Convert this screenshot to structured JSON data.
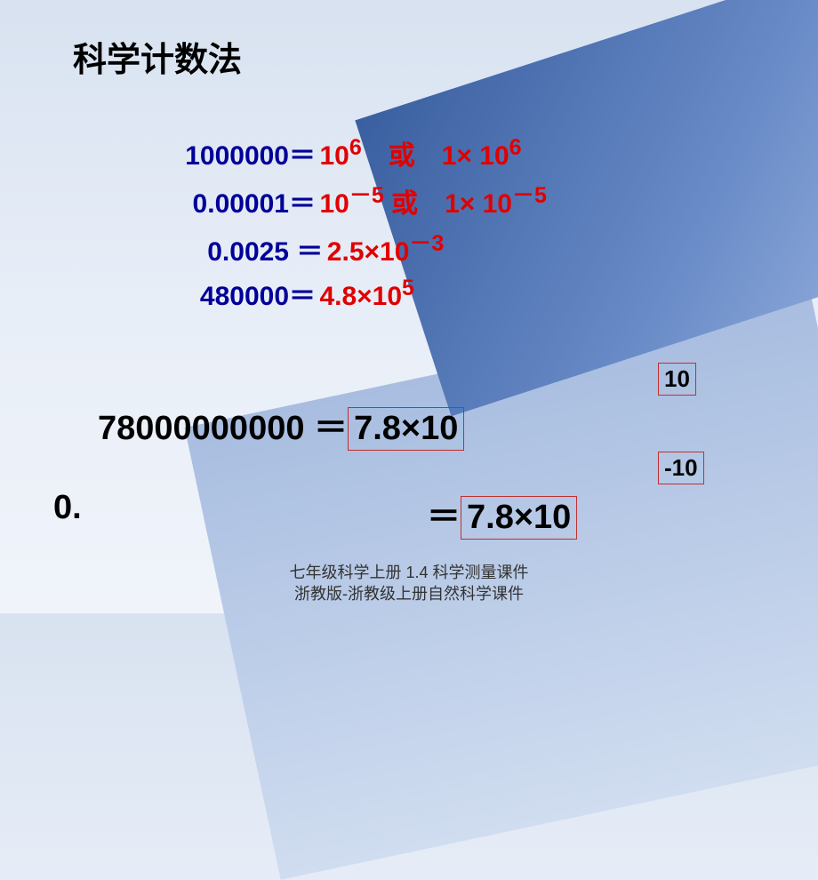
{
  "title": "科学计数法",
  "examples": [
    {
      "lhs": "1000000",
      "eq": "＝",
      "rhs_html": "10<sup>6</sup>　或　1× 10<sup>6</sup>"
    },
    {
      "lhs": "0.00001",
      "eq": "＝",
      "rhs_html": "10<sup>－5</sup> 或　1× 10<sup>－5</sup>"
    },
    {
      "lhs": "0.0025",
      "eq": " ＝",
      "rhs_html": " 2.5×10<sup>－3</sup>"
    },
    {
      "lhs": "480000",
      "eq": "＝",
      "rhs_html": " 4.8×10<sup>5</sup>"
    }
  ],
  "big_rows": [
    {
      "lhs": "78000000000",
      "eq": "＝",
      "boxed": "7.8×10",
      "exp": "10"
    },
    {
      "lhs": "0.",
      "eq": "＝",
      "boxed": "7.8×10",
      "exp": "-10"
    }
  ],
  "colors": {
    "lhs_color": "#000098",
    "rhs_color": "#e00000",
    "box_border": "#c03030",
    "title_color": "#000000",
    "big_text_color": "#000000",
    "bg_light": "#e8eef8",
    "bg_accent_dark": "#3a5fa0",
    "bg_accent_light": "#a8bde0"
  },
  "typography": {
    "title_fontsize": 38,
    "example_fontsize": 30,
    "big_fontsize": 38,
    "exp_box_fontsize": 26,
    "footer_fontsize": 18,
    "font_family": "SimSun"
  },
  "footer": {
    "line1": "七年级科学上册 1.4 科学测量课件",
    "line2": "浙教版-浙教级上册自然科学课件"
  }
}
